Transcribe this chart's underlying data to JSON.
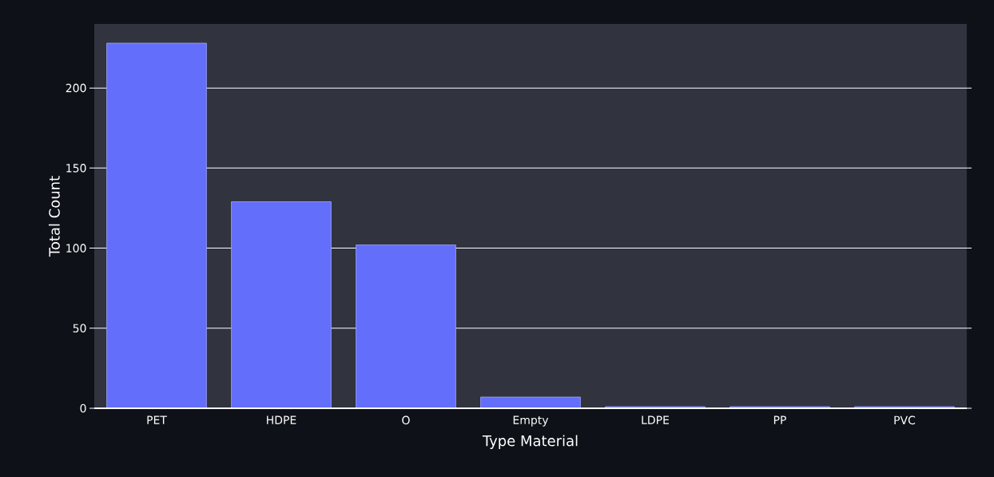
{
  "chart_data": {
    "type": "bar",
    "xlabel": "Type Material",
    "ylabel": "Total Count",
    "categories": [
      "PET",
      "HDPE",
      "O",
      "Empty",
      "LDPE",
      "PP",
      "PVC"
    ],
    "values": [
      228,
      129,
      102,
      7,
      1,
      1,
      1
    ],
    "color": "#636efa",
    "ylim": [
      0,
      240
    ],
    "yticks": [
      0,
      50,
      100,
      150,
      200
    ],
    "grid": "y"
  }
}
